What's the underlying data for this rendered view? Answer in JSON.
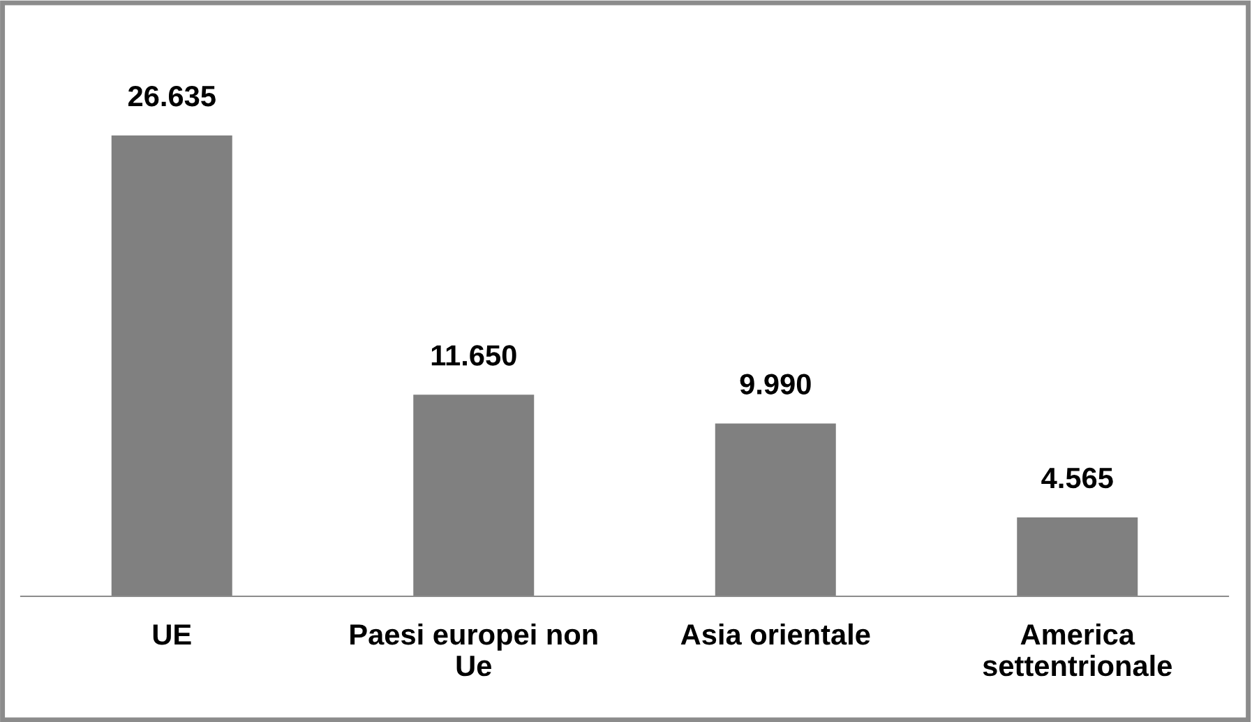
{
  "chart_data": {
    "type": "bar",
    "categories": [
      "UE",
      "Paesi europei non\nUe",
      "Asia orientale",
      "America\nsettentrionale"
    ],
    "values": [
      26635,
      11650,
      9990,
      4565
    ],
    "value_labels": [
      "26.635",
      "11.650",
      "9.990",
      "4.565"
    ],
    "color": "#808080",
    "grid": false,
    "legend": false
  }
}
